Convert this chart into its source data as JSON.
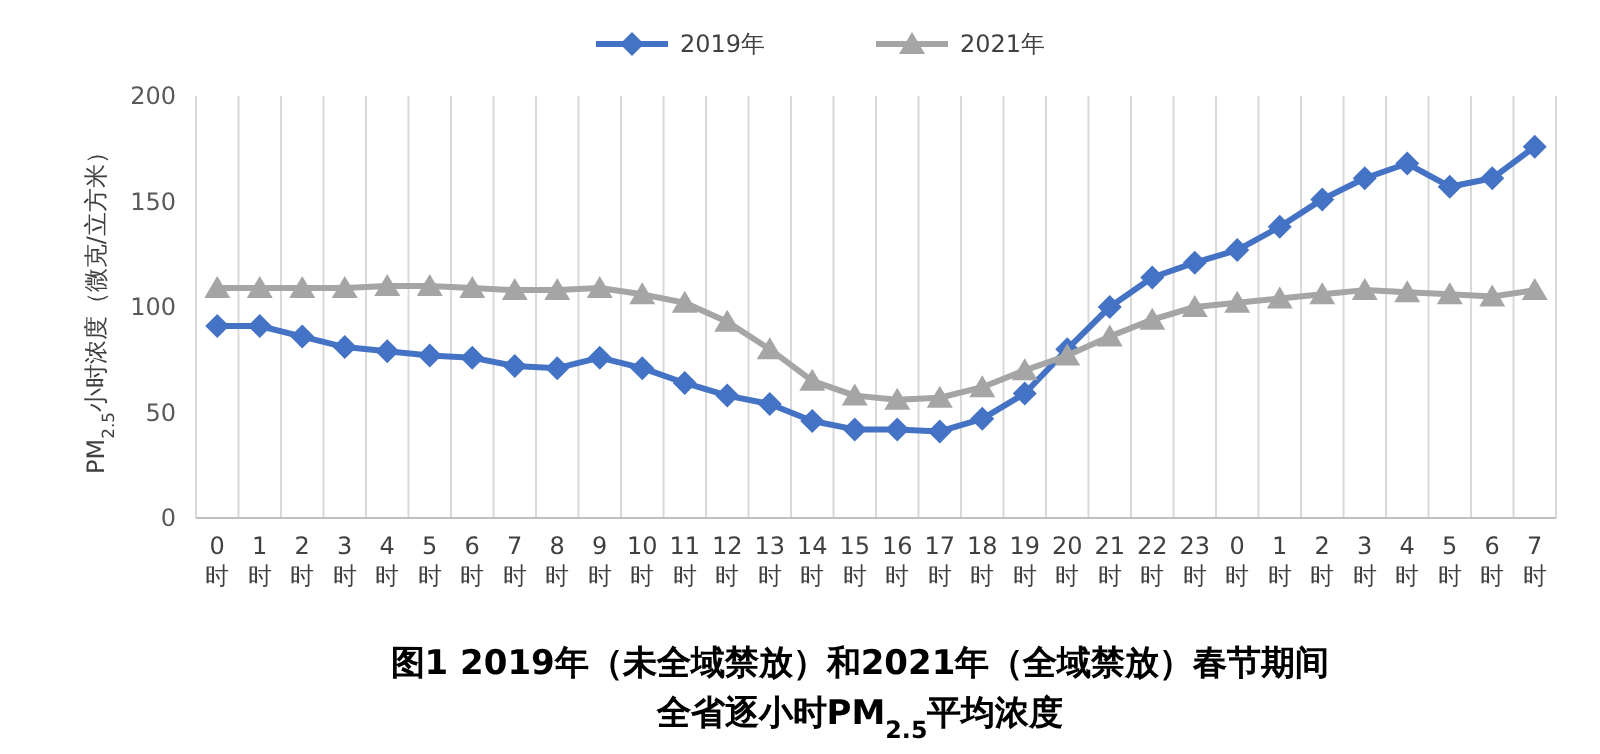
{
  "chart_data": {
    "type": "line",
    "title": "图1 2019年（未全域禁放）和2021年（全域禁放）春节期间",
    "subtitle": "全省逐小时PM$_{2.5}$平均浓度",
    "ylabel": "PM$_{2.5}$小时浓度（微克/立方米）",
    "categories": [
      "0时",
      "1时",
      "2时",
      "3时",
      "4时",
      "5时",
      "6时",
      "7时",
      "8时",
      "9时",
      "10时",
      "11时",
      "12时",
      "13时",
      "14时",
      "15时",
      "16时",
      "17时",
      "18时",
      "19时",
      "20时",
      "21时",
      "22时",
      "23时",
      "0时",
      "1时",
      "2时",
      "3时",
      "4时",
      "5时",
      "6时",
      "7时"
    ],
    "series": [
      {
        "name": "2019年",
        "color": "#4472c4",
        "marker": "diamond",
        "values": [
          91,
          91,
          86,
          81,
          79,
          77,
          76,
          72,
          71,
          76,
          71,
          64,
          58,
          54,
          46,
          42,
          42,
          41,
          47,
          59,
          80,
          100,
          114,
          121,
          127,
          138,
          151,
          161,
          168,
          157,
          161,
          176
        ]
      },
      {
        "name": "2021年",
        "color": "#a5a5a5",
        "marker": "triangle",
        "values": [
          109,
          109,
          109,
          109,
          110,
          110,
          109,
          108,
          108,
          109,
          106,
          102,
          93,
          80,
          65,
          58,
          56,
          57,
          62,
          70,
          77,
          86,
          94,
          100,
          102,
          104,
          106,
          108,
          107,
          106,
          105,
          108
        ]
      }
    ],
    "ylim": [
      0,
      200
    ],
    "yticks": [
      0,
      50,
      100,
      150,
      200
    ],
    "grid": "x",
    "legend": "top"
  }
}
